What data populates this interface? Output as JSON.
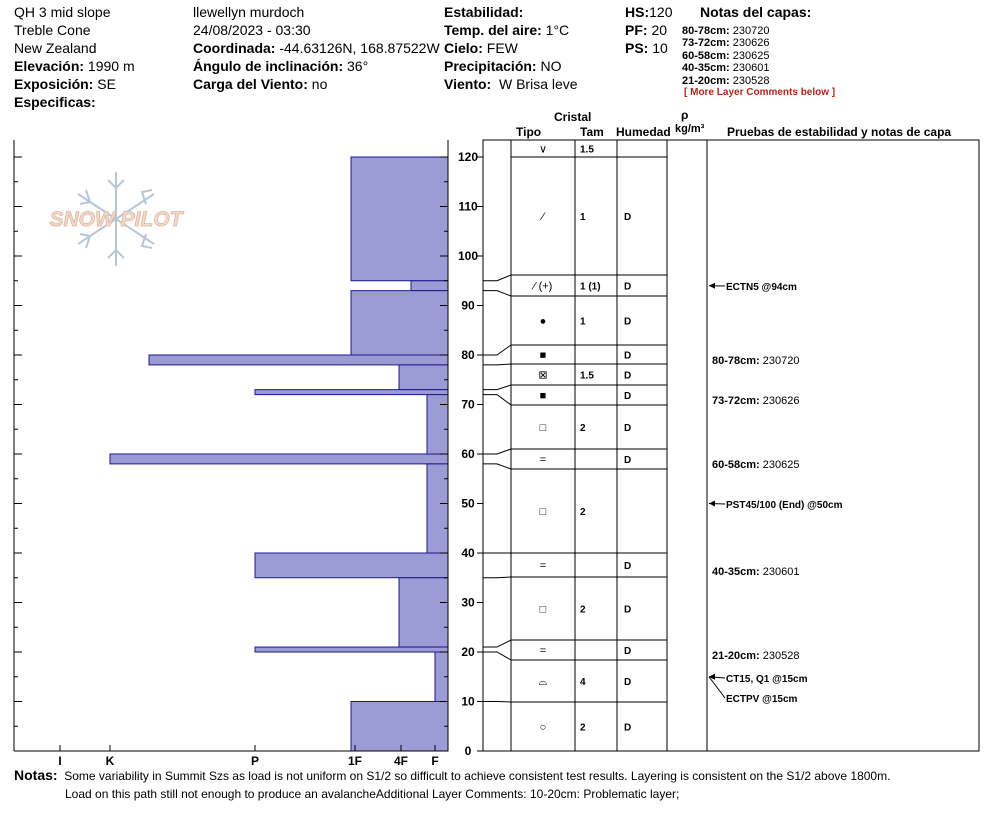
{
  "header": {
    "col1": {
      "site": "QH 3 mid slope",
      "area": "Treble Cone",
      "country": "New Zealand",
      "elev_label": "Elevación:",
      "elev_value": "1990 m",
      "aspect_label": "Exposición:",
      "aspect_value": "SE",
      "specifics_label": "Especificas:"
    },
    "col2": {
      "observer": "llewellyn murdoch",
      "datetime": "24/08/2023 - 03:30",
      "coord_label": "Coordinada:",
      "coord_value": "-44.63126N, 168.87522W",
      "slope_label": "Ángulo de inclinación:",
      "slope_value": "36°",
      "wind_load_label": "Carga del Viento:",
      "wind_load_value": "no"
    },
    "col3": {
      "stability_label": "Estabilidad:",
      "air_temp_label": "Temp. del aire:",
      "air_temp_value": "1°C",
      "sky_label": "Cielo:",
      "sky_value": "FEW",
      "precip_label": "Precipitación:",
      "precip_value": "NO",
      "wind_label": "Viento:",
      "wind_value": "W Brisa leve"
    },
    "col4": {
      "hs_label": "HS:",
      "hs_value": "120",
      "pf_label": "PF:",
      "pf_value": "20",
      "ps_label": "PS:",
      "ps_value": "10"
    },
    "layer_notes": {
      "title": "Notas del capas:",
      "items": [
        {
          "range": "80-78cm:",
          "text": "230720"
        },
        {
          "range": "73-72cm:",
          "text": "230626"
        },
        {
          "range": "60-58cm:",
          "text": "230625"
        },
        {
          "range": "40-35cm:",
          "text": "230601"
        },
        {
          "range": "21-20cm:",
          "text": "230528"
        }
      ],
      "more": "[ More Layer Comments below ]"
    }
  },
  "logo_text": "SNOW PILOT",
  "table_headers": {
    "cristal": "Cristal",
    "tipo": "Tipo",
    "tam": "Tam",
    "humedad": "Humedad",
    "rho": "ρ",
    "rho_unit": "kg/m³",
    "tests": "Pruebas de estabilidad y notas de capa"
  },
  "colors": {
    "bar_fill": "#9b9bd6",
    "bar_stroke": "#1a1a8c",
    "grid": "#000000"
  },
  "chart_data": {
    "type": "bar",
    "orientation": "horizontal",
    "y_axis": {
      "range": [
        0,
        120
      ],
      "ticks": [
        0,
        10,
        20,
        30,
        40,
        50,
        60,
        70,
        80,
        90,
        100,
        110,
        120
      ]
    },
    "x_axis": {
      "tick_labels": [
        "I",
        "K",
        "P",
        "1F",
        "4F",
        "F"
      ]
    },
    "hardness_profile": [
      {
        "top": 120,
        "bottom": 95,
        "hardness": "1F"
      },
      {
        "top": 95,
        "bottom": 93,
        "hardness": "4F+"
      },
      {
        "top": 93,
        "bottom": 80,
        "hardness": "1F"
      },
      {
        "top": 80,
        "bottom": 78,
        "hardness": "K+"
      },
      {
        "top": 78,
        "bottom": 73,
        "hardness": "4F"
      },
      {
        "top": 73,
        "bottom": 72,
        "hardness": "P"
      },
      {
        "top": 72,
        "bottom": 60,
        "hardness": "F+"
      },
      {
        "top": 60,
        "bottom": 58,
        "hardness": "K"
      },
      {
        "top": 58,
        "bottom": 40,
        "hardness": "F+"
      },
      {
        "top": 40,
        "bottom": 35,
        "hardness": "P"
      },
      {
        "top": 35,
        "bottom": 21,
        "hardness": "4F"
      },
      {
        "top": 21,
        "bottom": 20,
        "hardness": "P"
      },
      {
        "top": 20,
        "bottom": 10,
        "hardness": "F"
      },
      {
        "top": 10,
        "bottom": 0,
        "hardness": "1F"
      }
    ],
    "layers": [
      {
        "top": 120,
        "bottom": 118,
        "tipo": "∨",
        "tam": "1.5",
        "humedad": ""
      },
      {
        "top": 118,
        "bottom": 95,
        "tipo": "⁄",
        "tam": "1",
        "humedad": "D"
      },
      {
        "top": 95,
        "bottom": 93,
        "tipo": "⁄ (+)",
        "tam": "1 (1)",
        "humedad": "D"
      },
      {
        "top": 93,
        "bottom": 80,
        "tipo": "●",
        "tam": "1",
        "humedad": "D"
      },
      {
        "top": 80,
        "bottom": 78,
        "tipo": "■",
        "tam": "",
        "humedad": "D"
      },
      {
        "top": 78,
        "bottom": 73,
        "tipo": "⊠",
        "tam": "1.5",
        "humedad": "D"
      },
      {
        "top": 73,
        "bottom": 72,
        "tipo": "■",
        "tam": "",
        "humedad": "D"
      },
      {
        "top": 72,
        "bottom": 60,
        "tipo": "□",
        "tam": "2",
        "humedad": "D"
      },
      {
        "top": 60,
        "bottom": 58,
        "tipo": "=",
        "tam": "",
        "humedad": "D"
      },
      {
        "top": 58,
        "bottom": 40,
        "tipo": "□",
        "tam": "2",
        "humedad": ""
      },
      {
        "top": 40,
        "bottom": 35,
        "tipo": "=",
        "tam": "",
        "humedad": "D"
      },
      {
        "top": 35,
        "bottom": 21,
        "tipo": "□",
        "tam": "2",
        "humedad": "D"
      },
      {
        "top": 21,
        "bottom": 20,
        "tipo": "=",
        "tam": "",
        "humedad": "D"
      },
      {
        "top": 20,
        "bottom": 10,
        "tipo": "⌓",
        "tam": "4",
        "humedad": "D"
      },
      {
        "top": 10,
        "bottom": 0,
        "tipo": "○",
        "tam": "2",
        "humedad": "D"
      }
    ],
    "tests": [
      {
        "depth": 94,
        "label": "ECTN5 @94cm"
      },
      {
        "depth": 50,
        "label": "PST45/100 (End) @50cm"
      },
      {
        "depth": 15,
        "label": "CT15, Q1 @15cm"
      },
      {
        "depth": 15,
        "label": "ECTPV @15cm"
      }
    ],
    "layer_comments": [
      {
        "depth": 80,
        "range": "80-78cm:",
        "text": "230720"
      },
      {
        "depth": 73,
        "range": "73-72cm:",
        "text": "230626"
      },
      {
        "depth": 60,
        "range": "60-58cm:",
        "text": "230625"
      },
      {
        "depth": 38,
        "range": "40-35cm:",
        "text": "230601"
      },
      {
        "depth": 20,
        "range": "21-20cm:",
        "text": "230528"
      }
    ]
  },
  "notes": {
    "label": "Notas:",
    "line1": "Some variability in Summit Szs as load is not uniform on S1/2 so difficult to achieve consistent test results. Layering is consistent on the S1/2 above 1800m.",
    "line2": "Load on this path still not enough to produce an avalancheAdditional Layer Comments: 10-20cm: Problematic layer;"
  }
}
